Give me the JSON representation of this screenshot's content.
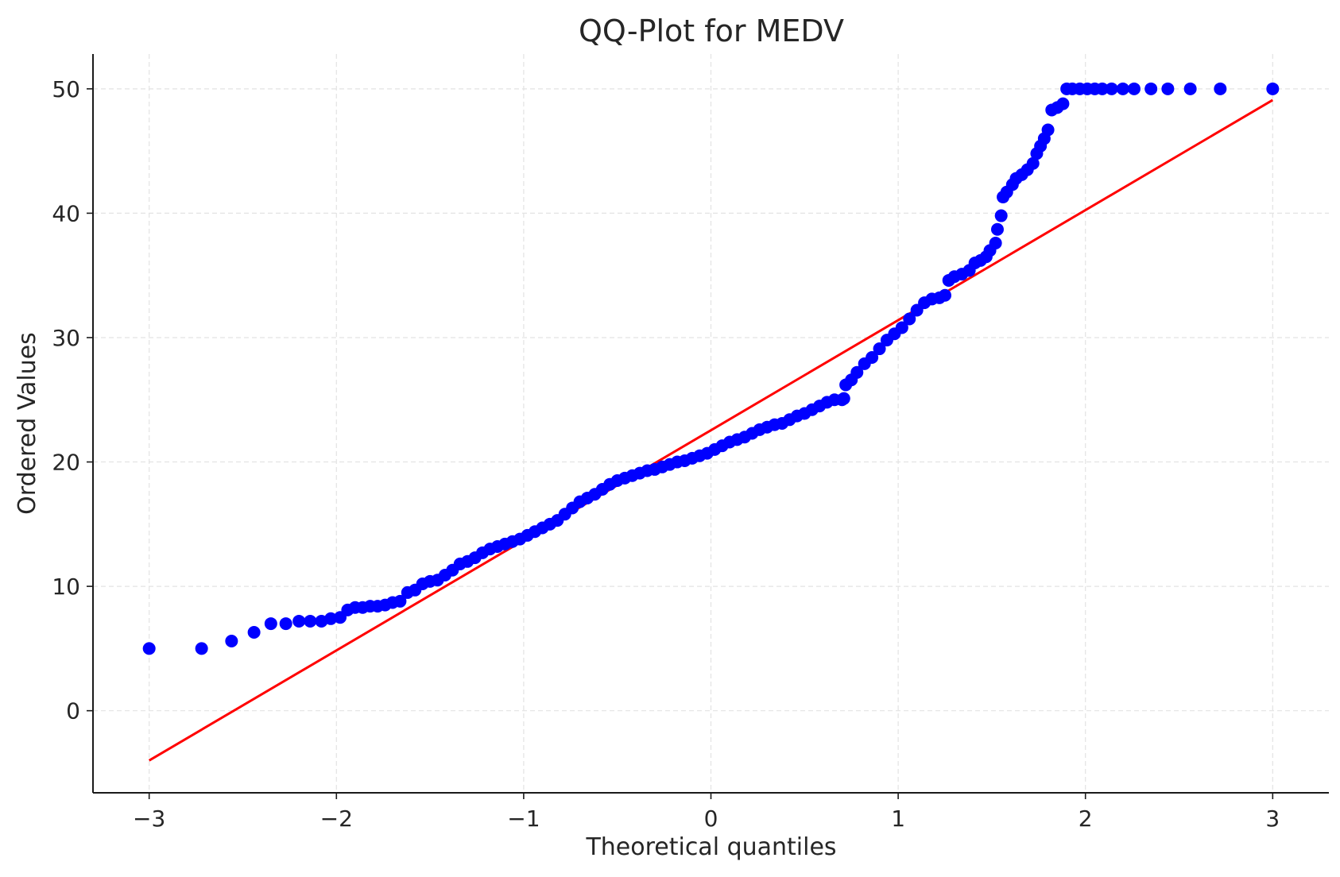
{
  "chart_data": {
    "type": "scatter",
    "title": "QQ-Plot for MEDV",
    "xlabel": "Theoretical quantiles",
    "ylabel": "Ordered Values",
    "xlim": [
      -3.3,
      3.3
    ],
    "ylim": [
      -6.6,
      52.8
    ],
    "x_ticks": [
      -3,
      -2,
      -1,
      0,
      1,
      2,
      3
    ],
    "x_tick_labels": [
      "−3",
      "−2",
      "−1",
      "0",
      "1",
      "2",
      "3"
    ],
    "y_ticks": [
      0,
      10,
      20,
      30,
      40,
      50
    ],
    "y_tick_labels": [
      "0",
      "10",
      "20",
      "30",
      "40",
      "50"
    ],
    "grid": true,
    "series": [
      {
        "kind": "points",
        "color": "#0000ff",
        "points": [
          [
            -3.0,
            5.0
          ],
          [
            -2.72,
            5.0
          ],
          [
            -2.56,
            5.6
          ],
          [
            -2.44,
            6.3
          ],
          [
            -2.35,
            7.0
          ],
          [
            -2.27,
            7.0
          ],
          [
            -2.2,
            7.2
          ],
          [
            -2.14,
            7.2
          ],
          [
            -2.08,
            7.2
          ],
          [
            -2.03,
            7.4
          ],
          [
            -1.98,
            7.5
          ],
          [
            -1.94,
            8.1
          ],
          [
            -1.9,
            8.3
          ],
          [
            -1.86,
            8.3
          ],
          [
            -1.82,
            8.4
          ],
          [
            -1.78,
            8.4
          ],
          [
            -1.74,
            8.5
          ],
          [
            -1.7,
            8.7
          ],
          [
            -1.66,
            8.8
          ],
          [
            -1.62,
            9.5
          ],
          [
            -1.58,
            9.7
          ],
          [
            -1.54,
            10.2
          ],
          [
            -1.5,
            10.4
          ],
          [
            -1.46,
            10.5
          ],
          [
            -1.42,
            10.9
          ],
          [
            -1.38,
            11.3
          ],
          [
            -1.34,
            11.8
          ],
          [
            -1.3,
            12.0
          ],
          [
            -1.26,
            12.3
          ],
          [
            -1.22,
            12.7
          ],
          [
            -1.18,
            13.0
          ],
          [
            -1.14,
            13.2
          ],
          [
            -1.1,
            13.4
          ],
          [
            -1.06,
            13.6
          ],
          [
            -1.02,
            13.8
          ],
          [
            -0.98,
            14.1
          ],
          [
            -0.94,
            14.4
          ],
          [
            -0.9,
            14.7
          ],
          [
            -0.86,
            15.0
          ],
          [
            -0.82,
            15.3
          ],
          [
            -0.78,
            15.8
          ],
          [
            -0.74,
            16.3
          ],
          [
            -0.7,
            16.8
          ],
          [
            -0.66,
            17.1
          ],
          [
            -0.62,
            17.4
          ],
          [
            -0.58,
            17.8
          ],
          [
            -0.54,
            18.2
          ],
          [
            -0.5,
            18.5
          ],
          [
            -0.46,
            18.7
          ],
          [
            -0.42,
            18.9
          ],
          [
            -0.38,
            19.1
          ],
          [
            -0.34,
            19.3
          ],
          [
            -0.3,
            19.4
          ],
          [
            -0.26,
            19.6
          ],
          [
            -0.22,
            19.8
          ],
          [
            -0.18,
            20.0
          ],
          [
            -0.14,
            20.1
          ],
          [
            -0.1,
            20.3
          ],
          [
            -0.06,
            20.5
          ],
          [
            -0.02,
            20.7
          ],
          [
            0.02,
            21.0
          ],
          [
            0.06,
            21.3
          ],
          [
            0.1,
            21.6
          ],
          [
            0.14,
            21.8
          ],
          [
            0.18,
            22.0
          ],
          [
            0.22,
            22.3
          ],
          [
            0.26,
            22.6
          ],
          [
            0.3,
            22.8
          ],
          [
            0.34,
            23.0
          ],
          [
            0.38,
            23.1
          ],
          [
            0.42,
            23.4
          ],
          [
            0.46,
            23.7
          ],
          [
            0.5,
            23.9
          ],
          [
            0.54,
            24.2
          ],
          [
            0.58,
            24.5
          ],
          [
            0.62,
            24.8
          ],
          [
            0.66,
            25.0
          ],
          [
            0.7,
            25.0
          ],
          [
            0.71,
            25.1
          ],
          [
            0.72,
            26.2
          ],
          [
            0.75,
            26.6
          ],
          [
            0.78,
            27.2
          ],
          [
            0.82,
            27.9
          ],
          [
            0.86,
            28.4
          ],
          [
            0.9,
            29.1
          ],
          [
            0.94,
            29.8
          ],
          [
            0.98,
            30.3
          ],
          [
            1.02,
            30.8
          ],
          [
            1.06,
            31.5
          ],
          [
            1.1,
            32.2
          ],
          [
            1.14,
            32.8
          ],
          [
            1.18,
            33.1
          ],
          [
            1.22,
            33.2
          ],
          [
            1.25,
            33.4
          ],
          [
            1.27,
            34.6
          ],
          [
            1.3,
            34.9
          ],
          [
            1.34,
            35.1
          ],
          [
            1.38,
            35.4
          ],
          [
            1.41,
            36.0
          ],
          [
            1.44,
            36.2
          ],
          [
            1.47,
            36.5
          ],
          [
            1.49,
            37.0
          ],
          [
            1.52,
            37.6
          ],
          [
            1.53,
            38.7
          ],
          [
            1.55,
            39.8
          ],
          [
            1.56,
            41.3
          ],
          [
            1.58,
            41.7
          ],
          [
            1.61,
            42.3
          ],
          [
            1.63,
            42.8
          ],
          [
            1.66,
            43.1
          ],
          [
            1.69,
            43.5
          ],
          [
            1.72,
            44.0
          ],
          [
            1.74,
            44.8
          ],
          [
            1.76,
            45.4
          ],
          [
            1.78,
            46.0
          ],
          [
            1.8,
            46.7
          ],
          [
            1.82,
            48.3
          ],
          [
            1.85,
            48.5
          ],
          [
            1.88,
            48.8
          ],
          [
            1.9,
            50.0
          ],
          [
            1.93,
            50.0
          ],
          [
            1.97,
            50.0
          ],
          [
            2.01,
            50.0
          ],
          [
            2.05,
            50.0
          ],
          [
            2.09,
            50.0
          ],
          [
            2.14,
            50.0
          ],
          [
            2.2,
            50.0
          ],
          [
            2.26,
            50.0
          ],
          [
            2.35,
            50.0
          ],
          [
            2.44,
            50.0
          ],
          [
            2.56,
            50.0
          ],
          [
            2.72,
            50.0
          ],
          [
            3.0,
            50.0
          ]
        ]
      },
      {
        "kind": "line",
        "color": "#ff0000",
        "points": [
          [
            -3.0,
            -4.0
          ],
          [
            3.0,
            49.1
          ]
        ]
      }
    ]
  }
}
